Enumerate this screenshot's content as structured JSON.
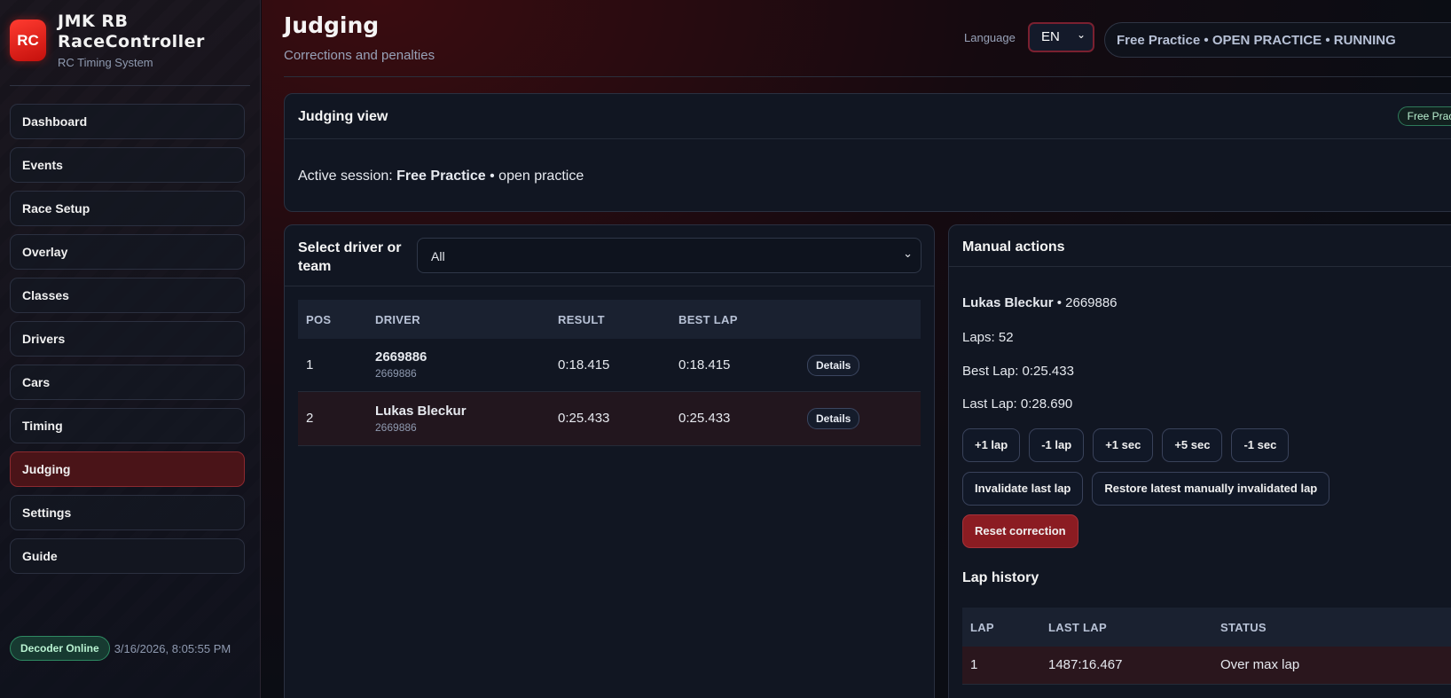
{
  "sidebar": {
    "logo_text": "RC",
    "brand": "JMK RB RaceController",
    "subtitle": "RC Timing System",
    "items": [
      {
        "label": "Dashboard"
      },
      {
        "label": "Events"
      },
      {
        "label": "Race Setup"
      },
      {
        "label": "Overlay"
      },
      {
        "label": "Classes"
      },
      {
        "label": "Drivers"
      },
      {
        "label": "Cars"
      },
      {
        "label": "Timing"
      },
      {
        "label": "Judging",
        "active": true
      },
      {
        "label": "Settings"
      },
      {
        "label": "Guide"
      }
    ],
    "decoder_status": "Decoder Online",
    "clock": "3/16/2026, 8:05:55 PM"
  },
  "header": {
    "title": "Judging",
    "subtitle": "Corrections and penalties",
    "language_label": "Language",
    "language_value": "EN",
    "status": "Free Practice • OPEN PRACTICE • RUNNING"
  },
  "judging_view": {
    "title": "Judging view",
    "badge": "Free Practice",
    "active_prefix": "Active session: ",
    "session_name": "Free Practice",
    "session_type": " • open practice"
  },
  "driver_panel": {
    "select_label": "Select driver or team",
    "select_value": "All",
    "columns": [
      "POS",
      "DRIVER",
      "RESULT",
      "BEST LAP"
    ],
    "rows": [
      {
        "pos": "1",
        "driver": "2669886",
        "transponder": "2669886",
        "result": "0:18.415",
        "best": "0:18.415",
        "action": "Details"
      },
      {
        "pos": "2",
        "driver": "Lukas Bleckur",
        "transponder": "2669886",
        "result": "0:25.433",
        "best": "0:25.433",
        "action": "Details",
        "selected": true
      }
    ]
  },
  "manual": {
    "title": "Manual actions",
    "driver": "Lukas Bleckur",
    "transponder": " • 2669886",
    "laps": "Laps: 52",
    "best_lap": "Best Lap: 0:25.433",
    "last_lap": "Last Lap: 0:28.690",
    "buttons": [
      "+1 lap",
      "-1 lap",
      "+1 sec",
      "+5 sec",
      "-1 sec"
    ],
    "invalidate": "Invalidate last lap",
    "restore": "Restore latest manually invalidated lap",
    "reset": "Reset correction",
    "history_title": "Lap history",
    "history_columns": [
      "LAP",
      "LAST LAP",
      "STATUS"
    ],
    "history_rows": [
      {
        "lap": "1",
        "time": "1487:16.467",
        "status": "Over max lap"
      }
    ]
  },
  "colors": {
    "accent": "#c4100c",
    "online": "#2e8a62",
    "active_nav": "#4a1418",
    "reset": "#8b1c22"
  }
}
